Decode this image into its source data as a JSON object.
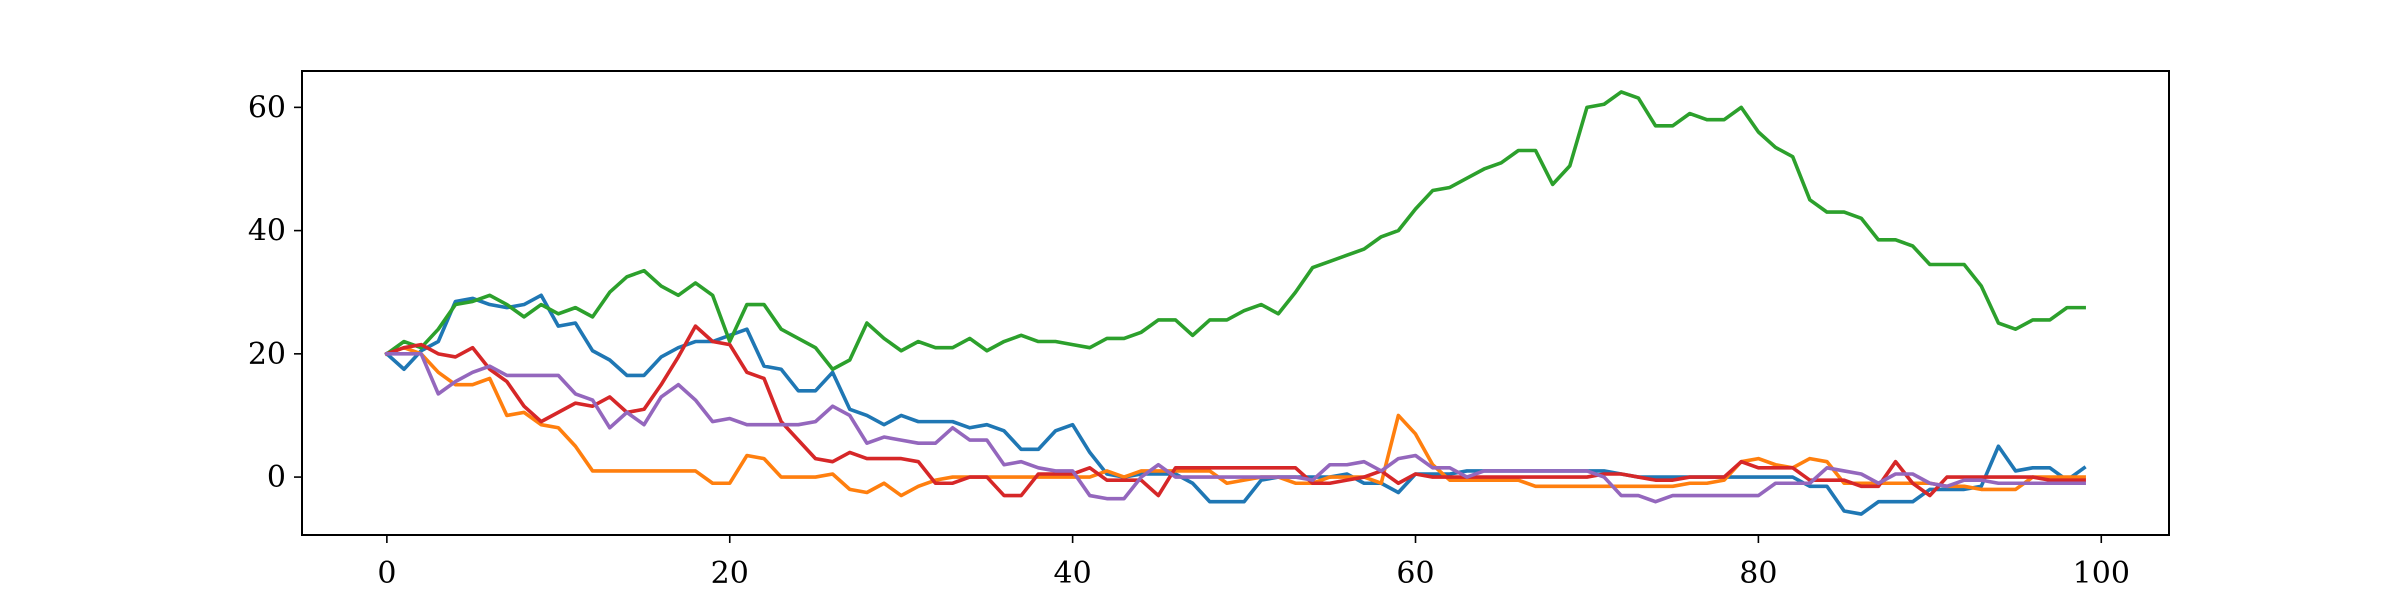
{
  "chart_data": {
    "type": "line",
    "x": [
      0,
      1,
      2,
      3,
      4,
      5,
      6,
      7,
      8,
      9,
      10,
      11,
      12,
      13,
      14,
      15,
      16,
      17,
      18,
      19,
      20,
      21,
      22,
      23,
      24,
      25,
      26,
      27,
      28,
      29,
      30,
      31,
      32,
      33,
      34,
      35,
      36,
      37,
      38,
      39,
      40,
      41,
      42,
      43,
      44,
      45,
      46,
      47,
      48,
      49,
      50,
      51,
      52,
      53,
      54,
      55,
      56,
      57,
      58,
      59,
      60,
      61,
      62,
      63,
      64,
      65,
      66,
      67,
      68,
      69,
      70,
      71,
      72,
      73,
      74,
      75,
      76,
      77,
      78,
      79,
      80,
      81,
      82,
      83,
      84,
      85,
      86,
      87,
      88,
      89,
      90,
      91,
      92,
      93,
      94,
      95,
      96,
      97,
      98,
      99
    ],
    "series": [
      {
        "color": "#1f77b4",
        "values": [
          20,
          17.5,
          20.5,
          22,
          28.5,
          29,
          28,
          27.5,
          28,
          29.5,
          24.5,
          25,
          20.5,
          19,
          16.5,
          16.5,
          19.5,
          21,
          22,
          22,
          23,
          24,
          18,
          17.5,
          14,
          14,
          17,
          11,
          10,
          8.5,
          10,
          9,
          9,
          9,
          8,
          8.5,
          7.5,
          4.5,
          4.5,
          7.5,
          8.5,
          4,
          0.5,
          0,
          0.5,
          0.5,
          0.5,
          -1,
          -4,
          -4,
          -4,
          -0.5,
          0,
          0,
          0,
          0,
          0.5,
          -1,
          -1,
          -2.5,
          0.5,
          0.5,
          0.5,
          1,
          1,
          1,
          1,
          1,
          1,
          1,
          1,
          1,
          0.5,
          0,
          0,
          0,
          0,
          0,
          0,
          0,
          0,
          0,
          0,
          -1.5,
          -1.5,
          -5.5,
          -6,
          -4,
          -4,
          -4,
          -2,
          -2,
          -2,
          -1.5,
          5,
          1,
          1.5,
          1.5,
          -0.5,
          1.5
        ]
      },
      {
        "color": "#ff7f0e",
        "values": [
          20,
          21,
          20,
          17,
          15,
          15,
          16,
          10,
          10.5,
          8.5,
          8,
          5,
          1,
          1,
          1,
          1,
          1,
          1,
          1,
          -1,
          -1,
          3.5,
          3,
          0,
          0,
          0,
          0.5,
          -2,
          -2.5,
          -1,
          -3,
          -1.5,
          -0.5,
          0,
          0,
          0,
          0,
          0,
          0,
          0,
          0,
          0,
          1,
          0,
          1,
          1,
          1,
          1,
          1,
          -1,
          -0.5,
          0,
          0,
          -1,
          -1,
          0,
          0,
          0,
          -1,
          10,
          7,
          2,
          -0.5,
          -0.5,
          -0.5,
          -0.5,
          -0.5,
          -1.5,
          -1.5,
          -1.5,
          -1.5,
          -1.5,
          -1.5,
          -1.5,
          -1.5,
          -1.5,
          -1,
          -1,
          -0.5,
          2.5,
          3,
          2,
          1.5,
          3,
          2.5,
          -1,
          -1,
          -1,
          -1,
          -1,
          -1,
          -1.5,
          -1.5,
          -2,
          -2,
          -2,
          0,
          0,
          0,
          0
        ]
      },
      {
        "color": "#2ca02c",
        "values": [
          20,
          22,
          21,
          24,
          28,
          28.5,
          29.5,
          28,
          26,
          28,
          26.5,
          27.5,
          26,
          30,
          32.5,
          33.5,
          31,
          29.5,
          31.5,
          29.5,
          22,
          28,
          28,
          24,
          22.5,
          21,
          17.5,
          19,
          25,
          22.5,
          20.5,
          22,
          21,
          21,
          22.5,
          20.5,
          22,
          23,
          22,
          22,
          21.5,
          21,
          22.5,
          22.5,
          23.5,
          25.5,
          25.5,
          23,
          25.5,
          25.5,
          27,
          28,
          26.5,
          30,
          34,
          35,
          36,
          37,
          39,
          40,
          43.5,
          46.5,
          47,
          48.5,
          50,
          51,
          53,
          53,
          47.5,
          50.5,
          60,
          60.5,
          62.5,
          61.5,
          57,
          57,
          59,
          58,
          58,
          60,
          56,
          53.5,
          52,
          45,
          43,
          43,
          42,
          38.5,
          38.5,
          37.5,
          34.5,
          34.5,
          34.5,
          31,
          25,
          24,
          25.5,
          25.5,
          27.5,
          27.5
        ]
      },
      {
        "color": "#d62728",
        "values": [
          20,
          21,
          21.5,
          20,
          19.5,
          21,
          17.5,
          15.5,
          11.5,
          9,
          10.5,
          12,
          11.5,
          13,
          10.5,
          11,
          15,
          19.5,
          24.5,
          22,
          21.5,
          17,
          16,
          9,
          6,
          3,
          2.5,
          4,
          3,
          3,
          3,
          2.5,
          -1,
          -1,
          0,
          0,
          -3,
          -3,
          0.5,
          0.5,
          0.5,
          1.5,
          -0.5,
          -0.5,
          -0.5,
          -3,
          1.5,
          1.5,
          1.5,
          1.5,
          1.5,
          1.5,
          1.5,
          1.5,
          -1,
          -1,
          -0.5,
          0,
          1,
          -1,
          0.5,
          0,
          0,
          0,
          0,
          0,
          0,
          0,
          0,
          0,
          0,
          0.5,
          0.5,
          0,
          -0.5,
          -0.5,
          0,
          0,
          0,
          2.5,
          1.5,
          1.5,
          1.5,
          -0.5,
          -0.5,
          -0.5,
          -1.5,
          -1.5,
          2.5,
          -1,
          -3,
          0,
          0,
          0,
          0,
          0,
          0,
          -0.5,
          -0.5,
          -0.5
        ]
      },
      {
        "color": "#9467bd",
        "values": [
          20,
          20,
          20,
          13.5,
          15.5,
          17,
          18,
          16.5,
          16.5,
          16.5,
          16.5,
          13.5,
          12.5,
          8,
          10.5,
          8.5,
          13,
          15,
          12.5,
          9,
          9.5,
          8.5,
          8.5,
          8.5,
          8.5,
          9,
          11.5,
          10,
          5.5,
          6.5,
          6,
          5.5,
          5.5,
          8,
          6,
          6,
          2,
          2.5,
          1.5,
          1,
          1,
          -3,
          -3.5,
          -3.5,
          0,
          2,
          0,
          0,
          0,
          0,
          0,
          0,
          0,
          0,
          -0.5,
          2,
          2,
          2.5,
          1,
          3,
          3.5,
          1.5,
          1.5,
          0,
          1,
          1,
          1,
          1,
          1,
          1,
          1,
          0,
          -3,
          -3,
          -4,
          -3,
          -3,
          -3,
          -3,
          -3,
          -3,
          -1,
          -1,
          -1,
          1.5,
          1,
          0.5,
          -1,
          0.5,
          0.5,
          -1,
          -1.5,
          -0.5,
          -0.5,
          -1,
          -1,
          -1,
          -1,
          -1,
          -1
        ]
      }
    ],
    "xlim": [
      -4.95,
      103.95
    ],
    "ylim": [
      -9.4,
      65.9
    ],
    "xticks": [
      0,
      20,
      40,
      60,
      80,
      100
    ],
    "yticks": [
      0,
      20,
      40,
      60
    ],
    "grid": false
  }
}
